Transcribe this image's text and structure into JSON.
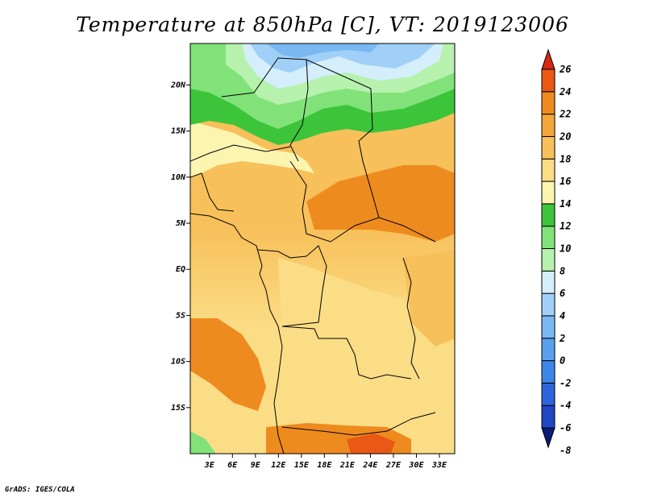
{
  "chart_data": {
    "type": "heatmap",
    "title": "Temperature at 850hPa [C], VT: 2019123006",
    "x_tick_labels": [
      "3E",
      "6E",
      "9E",
      "12E",
      "15E",
      "18E",
      "21E",
      "24E",
      "27E",
      "30E",
      "33E"
    ],
    "x_ticks": [
      3,
      6,
      9,
      12,
      15,
      18,
      21,
      24,
      27,
      30,
      33
    ],
    "xlim": [
      0.5,
      35
    ],
    "y_tick_labels": [
      "20N",
      "15N",
      "10N",
      "5N",
      "EQ",
      "5S",
      "10S",
      "15S"
    ],
    "y_ticks": [
      20,
      15,
      10,
      5,
      0,
      -5,
      -10,
      -15
    ],
    "ylim": [
      -20,
      24.5
    ],
    "colorbar": {
      "levels": [
        -8,
        -6,
        -4,
        -2,
        0,
        2,
        4,
        6,
        8,
        10,
        12,
        14,
        16,
        18,
        20,
        22,
        24,
        26
      ],
      "labels": [
        "26",
        "24",
        "22",
        "20",
        "18",
        "16",
        "14",
        "12",
        "10",
        "8",
        "6",
        "4",
        "2",
        "0",
        "-2",
        "-4",
        "-6",
        "-8"
      ],
      "colors": [
        "#0c1a78",
        "#1f47c4",
        "#2e64db",
        "#3d85e8",
        "#5aa0ee",
        "#7ab8f2",
        "#a0d0f7",
        "#d4eefb",
        "#b6f2ae",
        "#82e27a",
        "#3cc43a",
        "#fbf5b0",
        "#fbdd86",
        "#f7c05a",
        "#f3a63a",
        "#ee8b1e",
        "#e95815",
        "#d62813"
      ]
    }
  },
  "footer": {
    "credit": "GrADS: IGES/COLA"
  }
}
